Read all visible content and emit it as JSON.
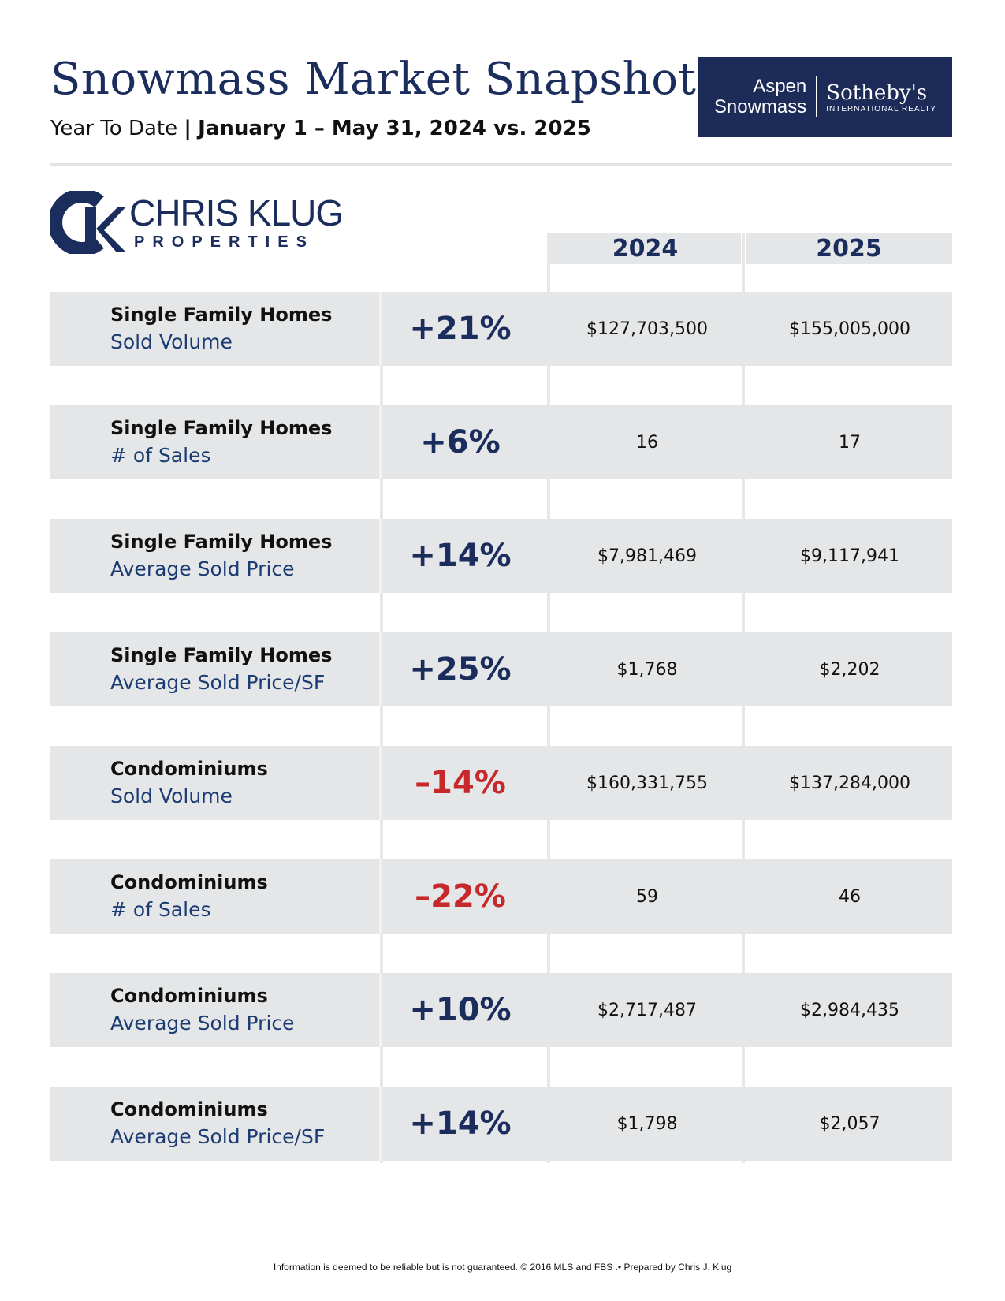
{
  "header": {
    "title": "Snowmass Market Snapshot",
    "subtitle_prefix": "Year To Date",
    "subtitle_separator": "|",
    "subtitle_range": "January 1 – May 31, 2024 vs. 2025"
  },
  "brand": {
    "line1": "Aspen",
    "line2": "Snowmass",
    "name": "Sotheby's",
    "tagline": "INTERNATIONAL REALTY"
  },
  "logo": {
    "name": "CHRIS KLUG",
    "sub": "PROPERTIES"
  },
  "columns": {
    "year1": "2024",
    "year2": "2025"
  },
  "rows": [
    {
      "category": "Single Family Homes",
      "metric": "Sold Volume",
      "change": "+21%",
      "trend": "up",
      "v2024": "$127,703,500",
      "v2025": "$155,005,000"
    },
    {
      "category": "Single Family Homes",
      "metric": "# of Sales",
      "change": "+6%",
      "trend": "up",
      "v2024": "16",
      "v2025": "17"
    },
    {
      "category": "Single Family Homes",
      "metric": "Average Sold Price",
      "change": "+14%",
      "trend": "up",
      "v2024": "$7,981,469",
      "v2025": "$9,117,941"
    },
    {
      "category": "Single Family Homes",
      "metric": "Average Sold Price/SF",
      "change": "+25%",
      "trend": "up",
      "v2024": "$1,768",
      "v2025": "$2,202"
    },
    {
      "category": "Condominiums",
      "metric": "Sold Volume",
      "change": "–14%",
      "trend": "down",
      "v2024": "$160,331,755",
      "v2025": "$137,284,000"
    },
    {
      "category": "Condominiums",
      "metric": "# of Sales",
      "change": "–22%",
      "trend": "down",
      "v2024": "59",
      "v2025": "46"
    },
    {
      "category": "Condominiums",
      "metric": "Average Sold Price",
      "change": "+10%",
      "trend": "up",
      "v2024": "$2,717,487",
      "v2025": "$2,984,435"
    },
    {
      "category": "Condominiums",
      "metric": "Average Sold Price/SF",
      "change": "+14%",
      "trend": "up",
      "v2024": "$1,798",
      "v2025": "$2,057"
    }
  ],
  "colors": {
    "navy": "#1b2d5c",
    "red": "#c6282c",
    "row_bg": "#e5e6e7"
  },
  "footer": "Information is deemed to be reliable but is not guaranteed. © 2016 MLS and FBS .• Prepared by Chris J. Klug"
}
